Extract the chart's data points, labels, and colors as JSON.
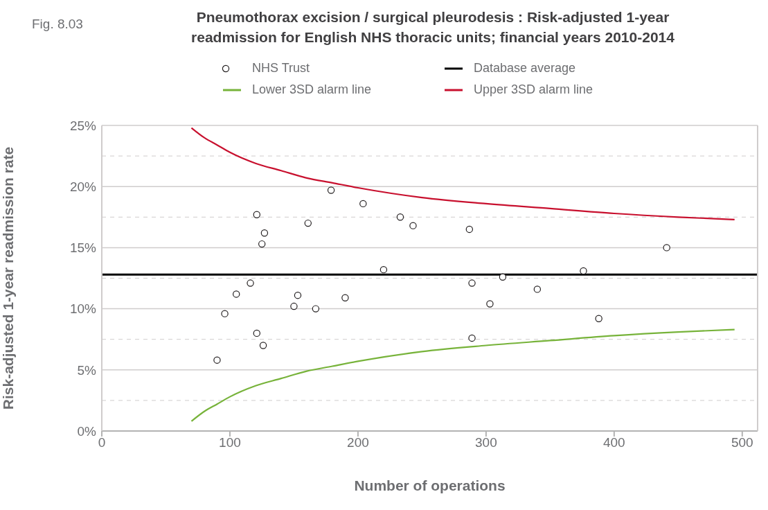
{
  "chart_data": {
    "type": "scatter",
    "title": "Pneumothorax excision / surgical pleurodesis : Risk-adjusted 1-year readmission for English NHS thoracic units; financial years 2010-2014",
    "annotations": [
      "Fig. 8.03"
    ],
    "xlabel": "Number of operations",
    "ylabel": "Risk-adjusted 1-year readmission rate",
    "xlim": [
      0,
      512
    ],
    "xticks": [
      0,
      100,
      200,
      300,
      400,
      500
    ],
    "ylim": [
      0,
      25
    ],
    "yticks": [
      {
        "value": 0,
        "label": "0%"
      },
      {
        "value": 2.5,
        "label": null
      },
      {
        "value": 5,
        "label": "5%"
      },
      {
        "value": 7.5,
        "label": null
      },
      {
        "value": 10,
        "label": "10%"
      },
      {
        "value": 12.5,
        "label": null
      },
      {
        "value": 15,
        "label": "15%"
      },
      {
        "value": 17.5,
        "label": null
      },
      {
        "value": 20,
        "label": "20%"
      },
      {
        "value": 22.5,
        "label": null
      },
      {
        "value": 25,
        "label": "25%"
      }
    ],
    "grid": "y",
    "legend": "top",
    "series": [
      {
        "name": "NHS Trust",
        "marker": "circle",
        "color": "#231f20",
        "x": [
          90,
          96,
          105,
          116,
          121,
          121,
          125,
          126,
          127,
          150,
          153,
          161,
          167,
          179,
          190,
          204,
          220,
          233,
          243,
          287,
          289,
          289,
          303,
          313,
          340,
          376,
          388,
          441
        ],
        "values": [
          5.8,
          9.6,
          11.2,
          12.1,
          17.7,
          8.0,
          15.3,
          7.0,
          16.2,
          10.2,
          11.1,
          17.0,
          10.0,
          19.7,
          10.9,
          18.6,
          13.2,
          17.5,
          16.8,
          16.5,
          12.1,
          7.6,
          10.4,
          12.6,
          11.6,
          13.1,
          9.2,
          15.0
        ]
      },
      {
        "name": "Lower 3SD alarm line",
        "type": "line",
        "marker": "none",
        "color": "#77b33a",
        "x": [
          70,
          80,
          90,
          100,
          120,
          140,
          160,
          180,
          200,
          250,
          300,
          350,
          400,
          450,
          494
        ],
        "values": [
          0.8,
          1.6,
          2.2,
          2.8,
          3.7,
          4.3,
          4.9,
          5.3,
          5.7,
          6.5,
          7.0,
          7.4,
          7.8,
          8.1,
          8.3
        ]
      },
      {
        "name": "Upper 3SD alarm line",
        "type": "line",
        "marker": "none",
        "color": "#c8102e",
        "x": [
          70,
          80,
          90,
          100,
          120,
          140,
          160,
          180,
          200,
          250,
          300,
          350,
          400,
          450,
          494
        ],
        "values": [
          24.8,
          24.0,
          23.4,
          22.8,
          21.9,
          21.3,
          20.7,
          20.3,
          19.9,
          19.1,
          18.6,
          18.2,
          17.8,
          17.5,
          17.3
        ]
      }
    ],
    "ref_lines": [
      {
        "axis": "y",
        "value": 12.8,
        "label": "Database average",
        "color": "#000000"
      }
    ]
  }
}
